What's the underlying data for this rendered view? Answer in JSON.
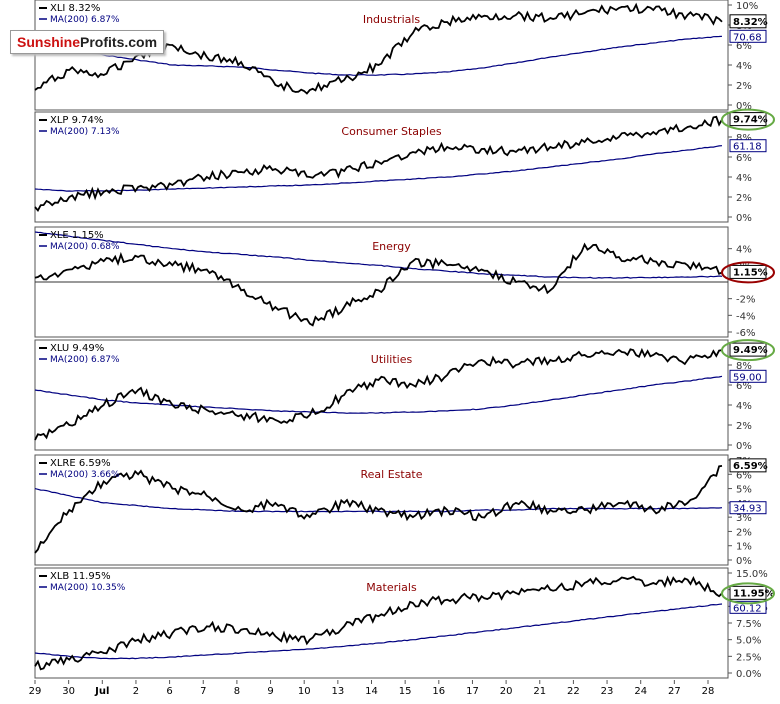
{
  "branding": {
    "logo_part1": "Sunshine",
    "logo_part2": "Profits.com"
  },
  "colors": {
    "price_line": "#000000",
    "ma_line": "#000080",
    "title": "#8b0000",
    "circle_green": "#66aa44",
    "circle_red": "#990000"
  },
  "x_axis": {
    "tick_labels": [
      "29",
      "30",
      "Jul",
      "2",
      "6",
      "7",
      "8",
      "9",
      "10",
      "13",
      "14",
      "15",
      "16",
      "17",
      "20",
      "21",
      "22",
      "23",
      "24",
      "27",
      "28"
    ],
    "bold_labels": [
      "Jul"
    ]
  },
  "chart_data": [
    {
      "type": "line",
      "title": "Industrials",
      "ylim": [
        0,
        10
      ],
      "yticks": [
        0,
        2,
        4,
        6,
        8,
        10
      ],
      "tick_suffix": "%",
      "legend": {
        "price": "XLI 8.32%",
        "ma": "MA(200) 6.87%"
      },
      "last_label": "8.32%",
      "ma_label": "70.68",
      "circle": "",
      "series": [
        {
          "name": "XLI",
          "values": [
            1.5,
            3.5,
            3.0,
            5.0,
            6.0,
            4.8,
            4.3,
            2.0,
            1.5,
            2.5,
            4.0,
            7.2,
            8.3,
            8.8,
            9.0,
            8.7,
            9.2,
            9.7,
            9.5,
            9.0,
            8.32
          ]
        },
        {
          "name": "MA(200)",
          "values": [
            6.2,
            5.5,
            5.0,
            4.5,
            4.0,
            3.9,
            3.8,
            3.5,
            3.2,
            3.0,
            3.0,
            3.1,
            3.3,
            3.7,
            4.2,
            4.8,
            5.3,
            5.8,
            6.2,
            6.6,
            6.87
          ]
        }
      ]
    },
    {
      "type": "line",
      "title": "Consumer Staples",
      "ylim": [
        0,
        10
      ],
      "yticks": [
        0,
        2,
        4,
        6,
        8
      ],
      "tick_suffix": "%",
      "legend": {
        "price": "XLP 9.74%",
        "ma": "MA(200) 7.13%"
      },
      "last_label": "9.74%",
      "ma_label": "61.18",
      "circle": "green",
      "series": [
        {
          "name": "XLP",
          "values": [
            1.0,
            2.0,
            2.5,
            3.0,
            3.2,
            4.0,
            4.5,
            4.8,
            4.0,
            4.6,
            5.5,
            6.5,
            7.0,
            6.8,
            6.5,
            7.0,
            7.5,
            8.0,
            8.5,
            9.0,
            9.74
          ]
        },
        {
          "name": "MA(200)",
          "values": [
            2.8,
            2.6,
            2.6,
            2.7,
            2.8,
            2.9,
            3.0,
            3.1,
            3.2,
            3.4,
            3.6,
            3.8,
            4.0,
            4.3,
            4.6,
            5.0,
            5.4,
            5.8,
            6.3,
            6.7,
            7.13
          ]
        }
      ]
    },
    {
      "type": "line",
      "title": "Energy",
      "ylim": [
        -6,
        6
      ],
      "yticks": [
        -6,
        -4,
        -2,
        2,
        4
      ],
      "tick_suffix": "%",
      "legend": {
        "price": "XLE 1.15%",
        "ma": "MA(200) 0.68%"
      },
      "last_label": "1.15%",
      "ma_label": "",
      "circle": "red",
      "series": [
        {
          "name": "XLE",
          "values": [
            0.5,
            1.5,
            2.5,
            3.0,
            2.0,
            1.5,
            -1.0,
            -3.0,
            -5.0,
            -3.0,
            -1.0,
            2.5,
            2.0,
            1.5,
            0.0,
            -1.0,
            4.5,
            3.0,
            2.5,
            2.0,
            1.15
          ]
        },
        {
          "name": "MA(200)",
          "values": [
            6.0,
            5.5,
            5.0,
            4.5,
            4.0,
            3.6,
            3.3,
            3.0,
            2.6,
            2.3,
            2.0,
            1.6,
            1.3,
            1.0,
            0.8,
            0.6,
            0.5,
            0.5,
            0.55,
            0.6,
            0.68
          ]
        }
      ]
    },
    {
      "type": "line",
      "title": "Utilities",
      "ylim": [
        0,
        10
      ],
      "yticks": [
        0,
        2,
        4,
        6,
        8
      ],
      "tick_suffix": "%",
      "legend": {
        "price": "XLU 9.49%",
        "ma": "MA(200) 6.87%"
      },
      "last_label": "9.49%",
      "ma_label": "59.00",
      "circle": "green",
      "series": [
        {
          "name": "XLU",
          "values": [
            0.5,
            2.0,
            4.0,
            5.5,
            4.0,
            3.5,
            3.0,
            2.5,
            3.0,
            5.0,
            6.5,
            6.0,
            7.0,
            8.5,
            8.0,
            8.5,
            9.0,
            9.5,
            9.0,
            8.5,
            9.49
          ]
        },
        {
          "name": "MA(200)",
          "values": [
            5.5,
            5.0,
            4.5,
            4.2,
            4.0,
            3.8,
            3.6,
            3.4,
            3.3,
            3.2,
            3.2,
            3.3,
            3.4,
            3.6,
            4.0,
            4.5,
            5.0,
            5.5,
            6.0,
            6.4,
            6.87
          ]
        }
      ]
    },
    {
      "type": "line",
      "title": "Real Estate",
      "ylim": [
        0,
        7
      ],
      "yticks": [
        0,
        1,
        2,
        3,
        4,
        5,
        6,
        7
      ],
      "tick_suffix": "%",
      "legend": {
        "price": "XLRE 6.59%",
        "ma": "MA(200) 3.66%"
      },
      "last_label": "6.59%",
      "ma_label": "34.93",
      "circle": "",
      "series": [
        {
          "name": "XLRE",
          "values": [
            0.5,
            3.5,
            5.5,
            6.0,
            5.0,
            4.5,
            3.5,
            4.0,
            3.0,
            4.0,
            3.5,
            3.0,
            3.5,
            3.0,
            4.0,
            3.5,
            3.5,
            4.0,
            3.5,
            4.0,
            6.59
          ]
        },
        {
          "name": "MA(200)",
          "values": [
            5.0,
            4.5,
            4.0,
            3.8,
            3.6,
            3.5,
            3.4,
            3.4,
            3.4,
            3.4,
            3.4,
            3.4,
            3.4,
            3.5,
            3.5,
            3.6,
            3.6,
            3.6,
            3.6,
            3.6,
            3.66
          ]
        }
      ]
    },
    {
      "type": "line",
      "title": "Materials",
      "ylim": [
        0,
        15
      ],
      "yticks": [
        0,
        2.5,
        5.0,
        7.5,
        10.0,
        12.5,
        15.0
      ],
      "tick_suffix": "%",
      "legend": {
        "price": "XLB 11.95%",
        "ma": "MA(200) 10.35%"
      },
      "last_label": "11.95%",
      "ma_label": "60.12",
      "circle": "green",
      "series": [
        {
          "name": "XLB",
          "values": [
            1.0,
            2.0,
            3.0,
            5.0,
            6.0,
            7.0,
            6.5,
            5.5,
            5.0,
            7.0,
            8.5,
            10.5,
            11.0,
            11.5,
            12.0,
            12.5,
            13.5,
            14.0,
            13.5,
            14.0,
            11.95
          ]
        },
        {
          "name": "MA(200)",
          "values": [
            3.0,
            2.5,
            2.2,
            2.2,
            2.4,
            2.7,
            3.0,
            3.3,
            3.6,
            4.0,
            4.5,
            5.0,
            5.6,
            6.2,
            6.8,
            7.4,
            8.0,
            8.6,
            9.2,
            9.8,
            10.35
          ]
        }
      ]
    }
  ]
}
